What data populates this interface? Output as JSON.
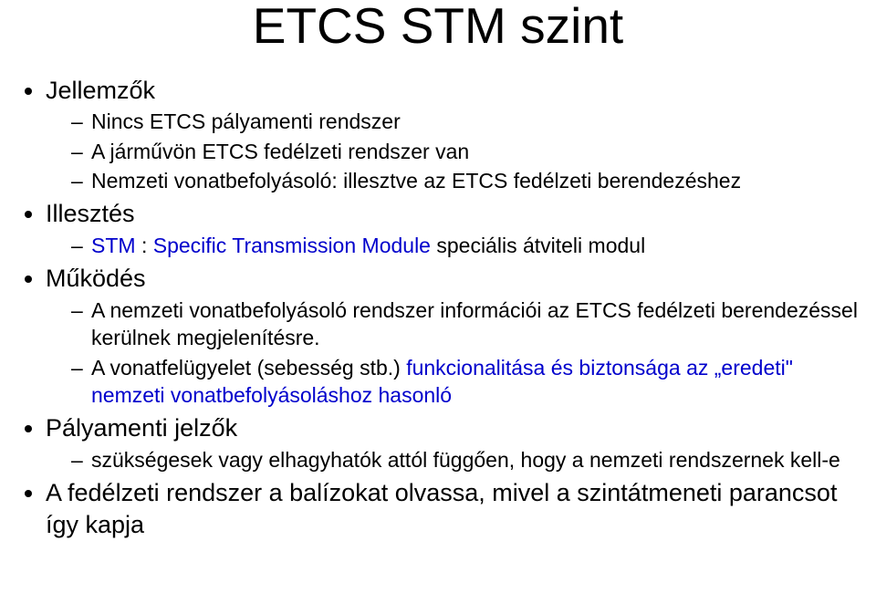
{
  "title": "ETCS STM szint",
  "sections": [
    {
      "label": "Jellemzők",
      "items": [
        {
          "segments": [
            {
              "text": "Nincs ETCS pályamenti rendszer",
              "color": "#000000"
            }
          ]
        },
        {
          "segments": [
            {
              "text": "A járművön ETCS fedélzeti rendszer van",
              "color": "#000000"
            }
          ]
        },
        {
          "segments": [
            {
              "text": "Nemzeti vonatbefolyásoló: illesztve az ETCS fedélzeti berendezéshez",
              "color": "#000000"
            }
          ]
        }
      ]
    },
    {
      "label": "Illesztés",
      "items": [
        {
          "segments": [
            {
              "text": "STM ",
              "color": "#0000cc"
            },
            {
              "text": ": ",
              "color": "#000000"
            },
            {
              "text": "Specific Transmission Module ",
              "color": "#0000cc"
            },
            {
              "text": "speciális átviteli modul",
              "color": "#000000"
            }
          ]
        }
      ]
    },
    {
      "label": "Működés",
      "items": [
        {
          "segments": [
            {
              "text": "A nemzeti vonatbefolyásoló rendszer információi az ETCS fedélzeti berendezéssel kerülnek megjelenítésre.",
              "color": "#000000"
            }
          ]
        },
        {
          "segments": [
            {
              "text": "A vonatfelügyelet (sebesség stb.) ",
              "color": "#000000"
            },
            {
              "text": "funkcionalitása és biztonsága az „eredeti\" nemzeti vonatbefolyásoláshoz hasonló",
              "color": "#0000cc"
            }
          ]
        }
      ]
    },
    {
      "label": "Pályamenti jelzők",
      "items": [
        {
          "segments": [
            {
              "text": "szükségesek vagy elhagyhatók attól függően, hogy a nemzeti ",
              "color": "#000000"
            },
            {
              "text": "rendszernek kell-e",
              "color": "#000000"
            }
          ]
        }
      ]
    },
    {
      "label": "A fedélzeti rendszer a balízokat olvassa, mivel a szintátmeneti parancsot így kapja",
      "items": []
    }
  ],
  "style": {
    "title_fontsize": 55,
    "lvl1_fontsize": 27,
    "lvl2_fontsize": 23,
    "text_color": "#000000",
    "accent_color": "#0000cc",
    "background": "#ffffff"
  }
}
